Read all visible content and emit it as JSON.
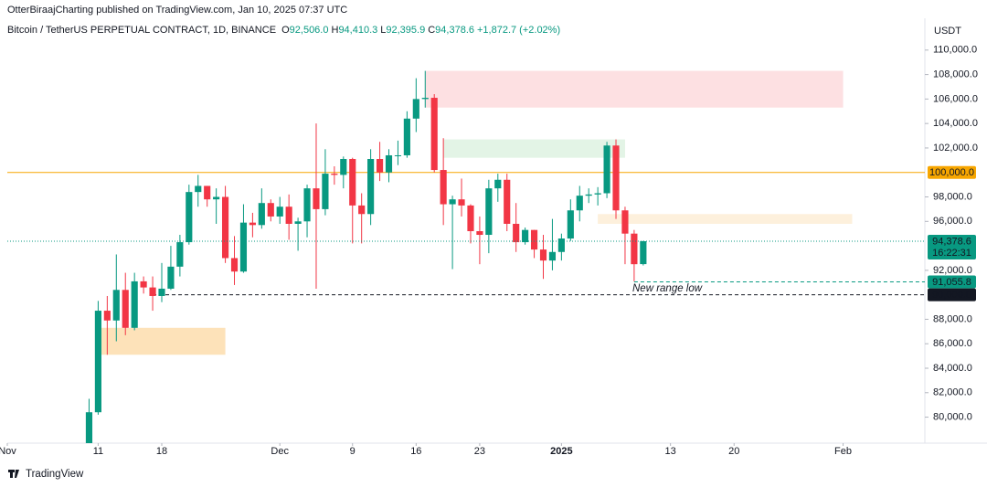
{
  "header": {
    "publish_line": "OtterBiraajCharting published on TradingView.com, Jan 10, 2025 07:37 UTC",
    "symbol": "Bitcoin / TetherUS PERPETUAL CONTRACT, 1D, BINANCE",
    "ohlc": [
      [
        "O",
        "92,506.0"
      ],
      [
        "H",
        "94,410.3"
      ],
      [
        "L",
        "92,395.9"
      ],
      [
        "C",
        "94,378.6"
      ]
    ],
    "change": "+1,872.7 (+2.02%)"
  },
  "footer": {
    "brand": "TradingView"
  },
  "chart_data": {
    "type": "candlestick",
    "x": [
      "2024-11-10",
      "2024-11-11",
      "2024-11-12",
      "2024-11-13",
      "2024-11-14",
      "2024-11-15",
      "2024-11-16",
      "2024-11-17",
      "2024-11-18",
      "2024-11-19",
      "2024-11-20",
      "2024-11-21",
      "2024-11-22",
      "2024-11-23",
      "2024-11-24",
      "2024-11-25",
      "2024-11-26",
      "2024-11-27",
      "2024-11-28",
      "2024-11-29",
      "2024-11-30",
      "2024-12-01",
      "2024-12-02",
      "2024-12-03",
      "2024-12-04",
      "2024-12-05",
      "2024-12-06",
      "2024-12-07",
      "2024-12-08",
      "2024-12-09",
      "2024-12-10",
      "2024-12-11",
      "2024-12-12",
      "2024-12-13",
      "2024-12-14",
      "2024-12-15",
      "2024-12-16",
      "2024-12-17",
      "2024-12-18",
      "2024-12-19",
      "2024-12-20",
      "2024-12-21",
      "2024-12-22",
      "2024-12-23",
      "2024-12-24",
      "2024-12-25",
      "2024-12-26",
      "2024-12-27",
      "2024-12-28",
      "2024-12-29",
      "2024-12-30",
      "2024-12-31",
      "2025-01-01",
      "2025-01-02",
      "2025-01-03",
      "2025-01-04",
      "2025-01-05",
      "2025-01-06",
      "2025-01-07",
      "2025-01-08",
      "2025-01-09",
      "2025-01-10"
    ],
    "open": [
      76700,
      80400,
      88700,
      87900,
      90400,
      87300,
      91100,
      90600,
      89900,
      90500,
      92300,
      94300,
      98400,
      98900,
      97800,
      98000,
      93000,
      91900,
      95900,
      95700,
      97500,
      96400,
      97200,
      95800,
      96000,
      98700,
      97000,
      99900,
      99800,
      101100,
      97300,
      96600,
      101100,
      100000,
      101400,
      101400,
      104400,
      106000,
      106100,
      100200,
      97400,
      97800,
      97300,
      95200,
      94900,
      98700,
      99400,
      95800,
      94300,
      95300,
      93700,
      92800,
      93500,
      94600,
      96900,
      98100,
      98200,
      98300,
      102200,
      96900,
      95000,
      92506
    ],
    "high": [
      81500,
      89500,
      89900,
      93300,
      91800,
      91800,
      91500,
      91500,
      92600,
      94000,
      94900,
      99000,
      99800,
      98900,
      98700,
      98900,
      94800,
      97400,
      96700,
      98700,
      97800,
      98000,
      98200,
      96300,
      99000,
      104000,
      101900,
      100500,
      101300,
      101200,
      98300,
      101900,
      102500,
      101900,
      102600,
      105000,
      107700,
      108300,
      106400,
      102800,
      98100,
      99500,
      97400,
      96400,
      99400,
      99900,
      99900,
      97500,
      95500,
      95300,
      94900,
      96200,
      95000,
      97800,
      98900,
      98700,
      98800,
      102500,
      102700,
      97200,
      95300,
      94410.3
    ],
    "low": [
      76500,
      80200,
      85100,
      86200,
      86700,
      87100,
      90100,
      88700,
      89400,
      90400,
      91500,
      94100,
      97200,
      97200,
      95800,
      92600,
      90800,
      91800,
      94700,
      95400,
      96000,
      95800,
      94500,
      93600,
      94700,
      90500,
      96500,
      99000,
      98700,
      94200,
      94200,
      95700,
      99300,
      99200,
      100600,
      101200,
      103300,
      105300,
      100000,
      95700,
      92100,
      96400,
      94200,
      92500,
      93400,
      97600,
      95200,
      93500,
      94100,
      93000,
      91300,
      92000,
      92800,
      94400,
      96000,
      97500,
      97300,
      97900,
      96200,
      92500,
      91100,
      92395.9
    ],
    "close": [
      80400,
      88700,
      87900,
      90400,
      87300,
      91100,
      90600,
      89900,
      90500,
      92300,
      94300,
      98400,
      98900,
      97800,
      98000,
      93000,
      91900,
      95900,
      95700,
      97500,
      96400,
      97200,
      95800,
      96000,
      98700,
      97000,
      99900,
      99800,
      101100,
      97300,
      96600,
      101100,
      100000,
      101400,
      101400,
      104400,
      106000,
      106100,
      100200,
      97400,
      97800,
      97300,
      95200,
      94900,
      98700,
      99400,
      95800,
      94300,
      95300,
      93700,
      92800,
      93500,
      94600,
      96900,
      98100,
      98200,
      98300,
      102200,
      96900,
      95000,
      92500,
      94378.6
    ],
    "up_color": "#089981",
    "down_color": "#f23645",
    "xlim": [
      "2024-11-01",
      "2025-02-10"
    ],
    "xticks": [
      {
        "value": "2024-11-01",
        "label": "Nov"
      },
      {
        "value": "2024-11-11",
        "label": "11"
      },
      {
        "value": "2024-11-18",
        "label": "18"
      },
      {
        "value": "2024-12-01",
        "label": "Dec"
      },
      {
        "value": "2024-12-09",
        "label": "9"
      },
      {
        "value": "2024-12-16",
        "label": "16"
      },
      {
        "value": "2024-12-23",
        "label": "23"
      },
      {
        "value": "2025-01-01",
        "label": "2025"
      },
      {
        "value": "2025-01-13",
        "label": "13"
      },
      {
        "value": "2025-01-20",
        "label": "20"
      },
      {
        "value": "2025-02-01",
        "label": "Feb"
      }
    ],
    "ylim": [
      78100,
      112600
    ],
    "y_unit": "USDT",
    "yticks": [
      {
        "value": 110000,
        "label": "110,000.0"
      },
      {
        "value": 108000,
        "label": "108,000.0"
      },
      {
        "value": 106000,
        "label": "106,000.0"
      },
      {
        "value": 104000,
        "label": "104,000.0"
      },
      {
        "value": 102000,
        "label": "102,000.0"
      },
      {
        "value": 98000,
        "label": "98,000.0"
      },
      {
        "value": 96000,
        "label": "96,000.0"
      },
      {
        "value": 92000,
        "label": "92,000.0"
      },
      {
        "value": 88000,
        "label": "88,000.0"
      },
      {
        "value": 86000,
        "label": "86,000.0"
      },
      {
        "value": 84000,
        "label": "84,000.0"
      },
      {
        "value": 82000,
        "label": "82,000.0"
      },
      {
        "value": 80000,
        "label": "80,000.0"
      }
    ],
    "grid": false,
    "zones": [
      {
        "from": "2024-12-17",
        "to": "2025-02-01",
        "low": 105300,
        "high": 108300,
        "color": "#fde0e2"
      },
      {
        "from": "2024-12-19",
        "to": "2025-01-08",
        "low": 101200,
        "high": 102700,
        "color": "#e3f4e6"
      },
      {
        "from": "2024-11-11",
        "to": "2024-11-25",
        "low": 85100,
        "high": 87300,
        "color": "#fde2b9"
      },
      {
        "from": "2025-01-05",
        "to": "2025-02-02",
        "low": 95800,
        "high": 96600,
        "color": "#fdf0dc"
      }
    ],
    "levels": [
      {
        "value": 100000,
        "label": "100,000.0",
        "color": "#f7a600",
        "dash": false,
        "text_color": "#131722"
      },
      {
        "value": 90000,
        "label": "90,000.0",
        "color": "#131722",
        "dash": true,
        "from": "2024-11-17",
        "text_color": "#ffffff"
      },
      {
        "value": 91055.8,
        "label": "91,055.8",
        "color": "#089981",
        "dash": true,
        "from": "2025-01-09",
        "text_color": "#ffffff"
      }
    ],
    "last_price": {
      "value": 94378.6,
      "label": "94,378.6",
      "countdown": "16:22:31",
      "color": "#089981"
    },
    "annotation": "New range low"
  }
}
